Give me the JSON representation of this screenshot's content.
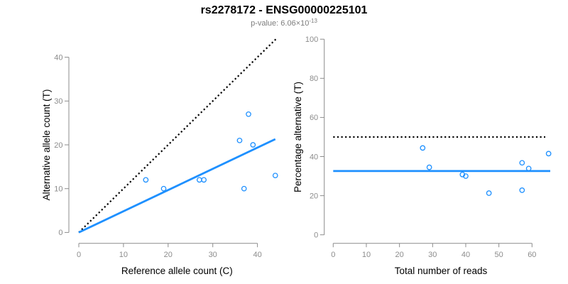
{
  "header": {
    "title": "rs2278172 - ENSG00000225101",
    "subtitle_prefix": "p-value: ",
    "subtitle_value": "6.06×10",
    "subtitle_exponent": "-13"
  },
  "colors": {
    "accent_blue": "#1e90ff",
    "axis_gray": "#8c8c8c",
    "tick_label_gray": "#8c8c8c",
    "axis_title_black": "#000000",
    "dotted_black": "#000000",
    "subtitle_gray": "#7d7d7d",
    "background": "#ffffff"
  },
  "chart_data": [
    {
      "name": "left-allele-count-scatter",
      "type": "scatter",
      "xlabel": "Reference allele count (C)",
      "ylabel": "Alternative allele count (T)",
      "xlim": [
        0,
        44
      ],
      "ylim": [
        0,
        44
      ],
      "xticks": [
        0,
        10,
        20,
        30,
        40
      ],
      "yticks": [
        0,
        10,
        20,
        30,
        40
      ],
      "grid": false,
      "points": [
        [
          15,
          12
        ],
        [
          19,
          10
        ],
        [
          27,
          12
        ],
        [
          28,
          12
        ],
        [
          36,
          21
        ],
        [
          37,
          10
        ],
        [
          38,
          27
        ],
        [
          39,
          20
        ],
        [
          44,
          13
        ]
      ],
      "lines": [
        {
          "name": "identity-line",
          "style": "dotted",
          "color": "#000000",
          "x": [
            0,
            44.3
          ],
          "y": [
            0,
            44.3
          ]
        },
        {
          "name": "fit-line",
          "style": "solid",
          "color": "#1e90ff",
          "x": [
            0,
            44
          ],
          "y": [
            0,
            21.3
          ]
        }
      ]
    },
    {
      "name": "right-percentage-scatter",
      "type": "scatter",
      "xlabel": "Total number of reads",
      "ylabel": "Percentage alternative (T)",
      "xlim": [
        0,
        65
      ],
      "ylim": [
        0,
        100
      ],
      "xticks": [
        0,
        10,
        20,
        30,
        40,
        50,
        60
      ],
      "yticks": [
        0,
        20,
        40,
        60,
        80,
        100
      ],
      "grid": false,
      "points": [
        [
          27,
          44.4
        ],
        [
          29,
          34.5
        ],
        [
          39,
          30.8
        ],
        [
          40,
          30
        ],
        [
          47,
          21.3
        ],
        [
          57,
          36.8
        ],
        [
          57,
          22.8
        ],
        [
          59,
          33.9
        ],
        [
          65,
          41.5
        ]
      ],
      "lines": [
        {
          "name": "reference-50pct-line",
          "style": "dotted",
          "color": "#000000",
          "x": [
            0,
            64
          ],
          "y": [
            50,
            50
          ]
        },
        {
          "name": "mean-percentage-line",
          "style": "solid",
          "color": "#1e90ff",
          "x": [
            0,
            65.5
          ],
          "y": [
            32.6,
            32.6
          ]
        }
      ]
    }
  ]
}
